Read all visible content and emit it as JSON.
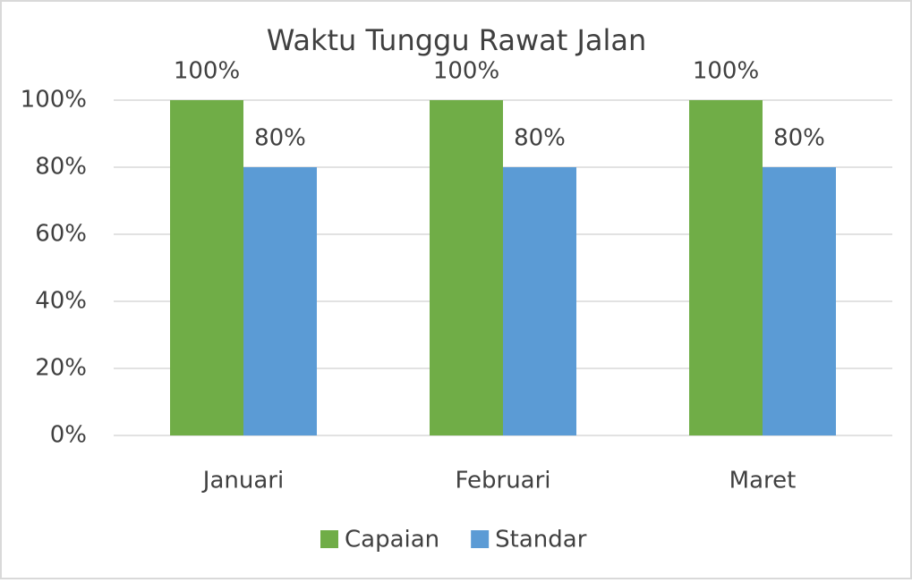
{
  "chart_data": {
    "type": "bar",
    "title": "Waktu Tunggu Rawat Jalan",
    "categories": [
      "Januari",
      "Februari",
      "Maret"
    ],
    "series": [
      {
        "name": "Capaian",
        "color": "#70ad47",
        "values": [
          100,
          100,
          100
        ],
        "value_labels": [
          "100%",
          "100%",
          "100%"
        ]
      },
      {
        "name": "Standar",
        "color": "#5b9bd5",
        "values": [
          80,
          80,
          80
        ],
        "value_labels": [
          "80%",
          "80%",
          "80%"
        ]
      }
    ],
    "ylim": [
      0,
      100
    ],
    "yticks": [
      {
        "value": 0,
        "label": "0%"
      },
      {
        "value": 20,
        "label": "20%"
      },
      {
        "value": 40,
        "label": "40%"
      },
      {
        "value": 60,
        "label": "60%"
      },
      {
        "value": 80,
        "label": "80%"
      },
      {
        "value": 100,
        "label": "100%"
      }
    ],
    "grid": true,
    "legend": "bottom"
  }
}
